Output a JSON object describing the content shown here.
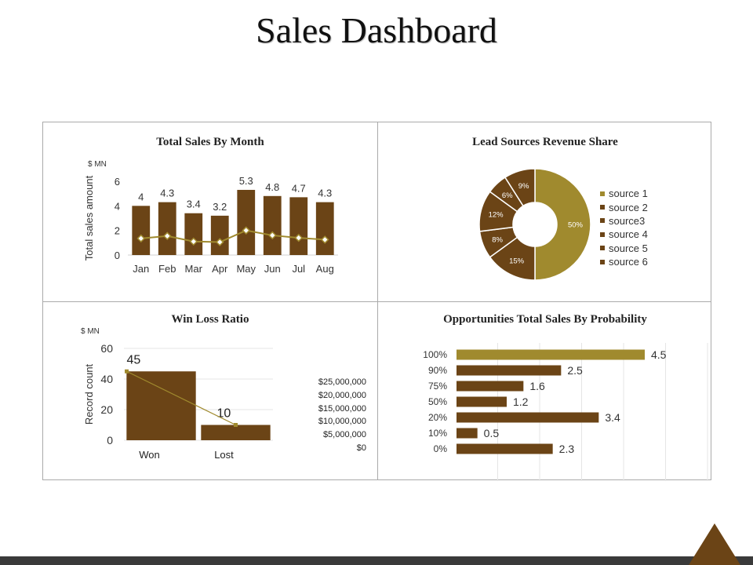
{
  "page": {
    "title": "Sales Dashboard"
  },
  "colors": {
    "brown": "#6b4416",
    "gold": "#a08a2e",
    "line": "#a08a2e",
    "grid": "#e5e5e5"
  },
  "chart_data": [
    {
      "id": "monthly",
      "type": "bar",
      "title": "Total Sales By Month",
      "unit": "$ MN",
      "ylabel": "Total sales amount",
      "ylim": [
        0,
        6
      ],
      "yticks": [
        0,
        2,
        4,
        6
      ],
      "categories": [
        "Jan",
        "Feb",
        "Mar",
        "Apr",
        "May",
        "Jun",
        "Jul",
        "Aug"
      ],
      "series": [
        {
          "values": [
            4,
            4.3,
            3.4,
            3.2,
            5.3,
            4.8,
            4.7,
            4.3
          ]
        },
        {
          "type": "line",
          "values": [
            1.35,
            1.55,
            1.1,
            1.05,
            2.0,
            1.6,
            1.4,
            1.25
          ]
        }
      ],
      "data_labels": [
        "4",
        "4.3",
        "3.4",
        "3.2",
        "5.3",
        "4.8",
        "4.7",
        "4.3"
      ]
    },
    {
      "id": "leads",
      "type": "pie",
      "title": "Lead Sources  Revenue Share",
      "labels": [
        "source 1",
        "source 2",
        "source3",
        "source 4",
        "source 5",
        "source 6"
      ],
      "values": [
        50,
        15,
        8,
        12,
        6,
        9
      ],
      "data_labels": [
        "50%",
        "15%",
        "8%",
        "12%",
        "6%",
        "9%"
      ],
      "legend": "right"
    },
    {
      "id": "winloss",
      "type": "bar",
      "title": "Win Loss Ratio",
      "unit": "$ MN",
      "ylabel": "Record count",
      "ylim": [
        0,
        60
      ],
      "yticks": [
        0,
        20,
        40,
        60
      ],
      "categories": [
        "Won",
        "Lost"
      ],
      "values": [
        45,
        10
      ],
      "data_labels": [
        "45",
        "10"
      ],
      "secondary_axis_labels": [
        "$25,000,000",
        "$20,000,000",
        "$15,000,000",
        "$10,000,000",
        "$5,000,000",
        "$0"
      ]
    },
    {
      "id": "probability",
      "type": "bar",
      "orientation": "horizontal",
      "title": "Opportunities Total Sales By Probability",
      "categories": [
        "100%",
        "90%",
        "75%",
        "50%",
        "20%",
        "10%",
        "0%"
      ],
      "values": [
        4.5,
        2.5,
        1.6,
        1.2,
        3.4,
        0.5,
        2.3
      ],
      "data_labels": [
        "4.5",
        "2.5",
        "1.6",
        "1.2",
        "3.4",
        "0.5",
        "2.3"
      ],
      "xlim": [
        0,
        6
      ]
    }
  ]
}
